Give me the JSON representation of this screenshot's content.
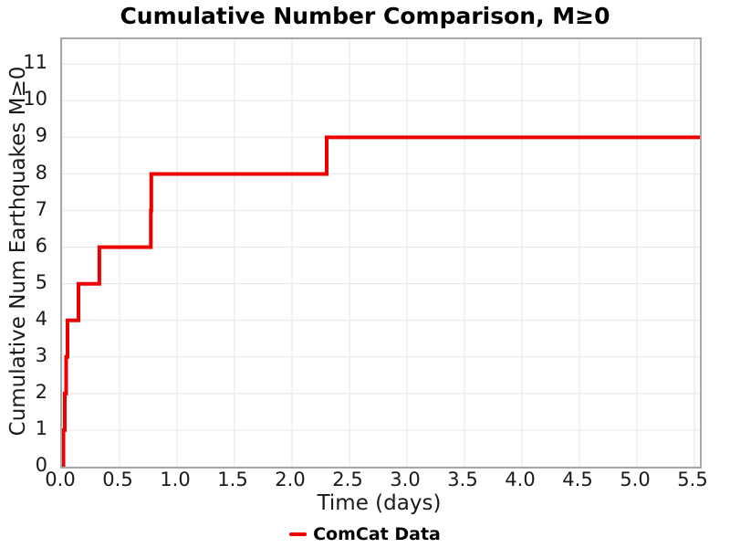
{
  "figure": {
    "title": "Cumulative Number Comparison, M≥0"
  },
  "chart_data": {
    "type": "line",
    "subtype": "step-post",
    "title": "Cumulative Number Comparison, M≥0",
    "xlabel": "Time (days)",
    "ylabel": "Cumulative Num Earthquakes M≥0",
    "xlim": [
      0,
      5.548
    ],
    "ylim": [
      0,
      11.68
    ],
    "xticks": [
      {
        "value": 0.0,
        "label": "0.0"
      },
      {
        "value": 0.5,
        "label": "0.5"
      },
      {
        "value": 1.0,
        "label": "1.0"
      },
      {
        "value": 1.5,
        "label": "1.5"
      },
      {
        "value": 2.0,
        "label": "2.0"
      },
      {
        "value": 2.5,
        "label": "2.5"
      },
      {
        "value": 3.0,
        "label": "3.0"
      },
      {
        "value": 3.5,
        "label": "3.5"
      },
      {
        "value": 4.0,
        "label": "4.0"
      },
      {
        "value": 4.5,
        "label": "4.5"
      },
      {
        "value": 5.0,
        "label": "5.0"
      },
      {
        "value": 5.5,
        "label": "5.5"
      }
    ],
    "yticks": [
      {
        "value": 0,
        "label": "0"
      },
      {
        "value": 1,
        "label": "1"
      },
      {
        "value": 2,
        "label": "2"
      },
      {
        "value": 3,
        "label": "3"
      },
      {
        "value": 4,
        "label": "4"
      },
      {
        "value": 5,
        "label": "5"
      },
      {
        "value": 6,
        "label": "6"
      },
      {
        "value": 7,
        "label": "7"
      },
      {
        "value": 8,
        "label": "8"
      },
      {
        "value": 9,
        "label": "9"
      },
      {
        "value": 10,
        "label": "10"
      },
      {
        "value": 11,
        "label": "11"
      }
    ],
    "grid": true,
    "grid_color": "#e9e9e9",
    "spine_color": "#a8a8a8",
    "legend": {
      "position": "bottom-center",
      "entries": [
        {
          "label": "ComCat Data",
          "color": "#ee0000"
        }
      ]
    },
    "series": [
      {
        "name": "ComCat Data",
        "color": "#ee0000",
        "line_width": 4,
        "step_points": [
          [
            0.012,
            0
          ],
          [
            0.012,
            1
          ],
          [
            0.024,
            1
          ],
          [
            0.024,
            2
          ],
          [
            0.036,
            2
          ],
          [
            0.036,
            3
          ],
          [
            0.048,
            3
          ],
          [
            0.048,
            4
          ],
          [
            0.143,
            4
          ],
          [
            0.143,
            5
          ],
          [
            0.325,
            5
          ],
          [
            0.325,
            6
          ],
          [
            0.772,
            6
          ],
          [
            0.772,
            7
          ],
          [
            0.776,
            7
          ],
          [
            0.776,
            8
          ],
          [
            2.302,
            8
          ],
          [
            2.302,
            9
          ],
          [
            5.548,
            9
          ]
        ]
      }
    ]
  }
}
